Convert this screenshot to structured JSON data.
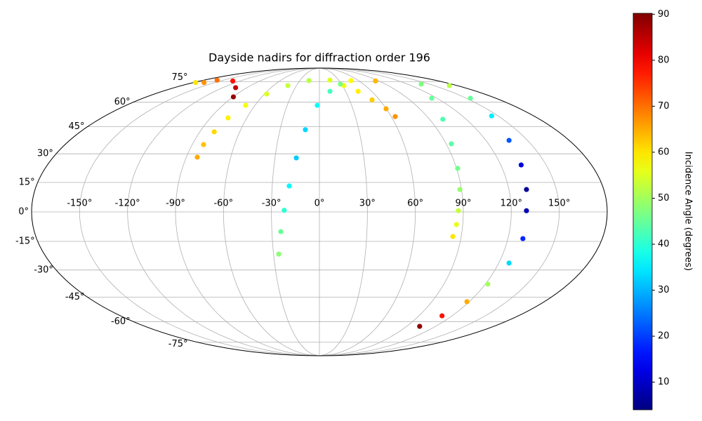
{
  "chart_data": {
    "type": "scatter",
    "projection": "mollweide",
    "title": "Dayside nadirs for diffraction order 196",
    "colorbar_label": "Incidence Angle (degrees)",
    "colormap": "jet",
    "clim": [
      4,
      90.2
    ],
    "cticks": [
      10,
      20,
      30,
      40,
      50,
      60,
      70,
      80,
      90
    ],
    "grid": true,
    "xlim": [
      -180,
      180
    ],
    "ylim": [
      -90,
      90
    ],
    "xticks": [
      {
        "value": -150,
        "label": "-150°"
      },
      {
        "value": -120,
        "label": "-120°"
      },
      {
        "value": -90,
        "label": "-90°"
      },
      {
        "value": -60,
        "label": "-60°"
      },
      {
        "value": -30,
        "label": "-30°"
      },
      {
        "value": 0,
        "label": "0°"
      },
      {
        "value": 30,
        "label": "30°"
      },
      {
        "value": 60,
        "label": "60°"
      },
      {
        "value": 90,
        "label": "90°"
      },
      {
        "value": 120,
        "label": "120°"
      },
      {
        "value": 150,
        "label": "150°"
      }
    ],
    "yticks": [
      {
        "value": -75,
        "label": "-75°"
      },
      {
        "value": -60,
        "label": "-60°"
      },
      {
        "value": -45,
        "label": "-45°"
      },
      {
        "value": -30,
        "label": "-30°"
      },
      {
        "value": -15,
        "label": "-15°"
      },
      {
        "value": 0,
        "label": "0°"
      },
      {
        "value": 15,
        "label": "15°"
      },
      {
        "value": 30,
        "label": "30°"
      },
      {
        "value": 45,
        "label": "45°"
      },
      {
        "value": 60,
        "label": "60°"
      },
      {
        "value": 75,
        "label": "75°"
      }
    ],
    "series": [
      {
        "x": [
          -82.6,
          -82.0,
          -79.2,
          -75.5,
          -68.7,
          -57.6,
          -41.3,
          -16.1,
          16.4,
          48.2,
          84.7
        ],
        "y": [
          28.2,
          35.0,
          42.1,
          50.2,
          58.0,
          65.6,
          71.8,
          75.8,
          76.2,
          75.8,
          75.5
        ],
        "c": [
          65,
          63,
          61,
          59,
          57,
          55,
          53,
          52,
          55,
          58,
          64
        ]
      },
      {
        "x": [
          32.1,
          44.4,
          52.5,
          59.8,
          63.3
        ],
        "y": [
          71.8,
          67.5,
          61.6,
          55.8,
          51.0
        ],
        "c": [
          57,
          59,
          62,
          65,
          67
        ]
      },
      {
        "x": [
          -26.6,
          -24.4,
          -22.0,
          -19.2,
          -15.6,
          -10.7,
          -2.0,
          12.1,
          28.6
        ],
        "y": [
          -21.6,
          -10.0,
          0.8,
          13.2,
          27.8,
          43.3,
          58.0,
          67.5,
          72.9
        ],
        "c": [
          48,
          45,
          40,
          36,
          32,
          33,
          37,
          42,
          47
        ]
      },
      {
        "x": [
          138.4,
          114.7,
          100.9,
          93.7,
          90.7,
          88.9,
          86.9,
          86.0,
          84.7
        ],
        "y": [
          72.9,
          62.7,
          49.4,
          35.4,
          22.3,
          11.4,
          0.6,
          -6.4,
          -12.5
        ],
        "c": [
          47,
          45,
          43,
          44,
          46,
          49,
          53,
          56,
          60
        ]
      },
      {
        "x": [
          169.9,
          154.2,
          144.6,
          136.7,
          133.5,
          131.1,
          129.5,
          129.5,
          126.9,
          121.8,
          118.1,
          110.9,
          103.5
        ],
        "y": [
          71.8,
          62.7,
          51.4,
          37.3,
          24.1,
          11.4,
          0.6,
          -13.6,
          -26.3,
          -37.7,
          -47.7,
          -56.3,
          -63.2
        ],
        "c": [
          52,
          45,
          35,
          22,
          12,
          6,
          8,
          18,
          33,
          50,
          65,
          78,
          89
        ]
      },
      {
        "x": [
          -177,
          -165,
          -159.5,
          -130.8,
          -104,
          -89.6
        ],
        "y": [
          74.2,
          74.2,
          76.2,
          75.5,
          70.2,
          63.6
        ],
        "c": [
          60,
          67,
          70,
          78,
          85,
          88
        ]
      }
    ]
  }
}
